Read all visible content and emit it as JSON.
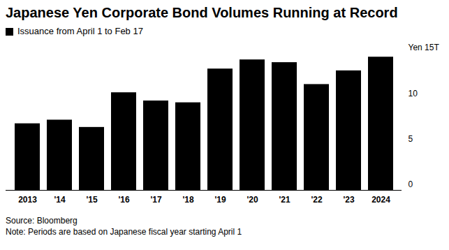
{
  "chart_data": {
    "type": "bar",
    "title": "Japanese Yen Corporate Bond Volumes Running at Record",
    "categories": [
      "2013",
      "'14",
      "'15",
      "'16",
      "'17",
      "'18",
      "'19",
      "'20",
      "'21",
      "'22",
      "'23",
      "2024"
    ],
    "series": [
      {
        "name": "Issuance from April 1 to Feb 17",
        "color": "#000000",
        "values": [
          7.3,
          7.7,
          6.9,
          10.7,
          9.8,
          9.6,
          13.3,
          14.3,
          14.0,
          11.6,
          13.1,
          14.6
        ]
      }
    ],
    "legend": "top-left",
    "ylim": [
      0,
      15
    ],
    "yticks": [
      0,
      5,
      10,
      {
        "value": 15,
        "label": "Yen 15T"
      }
    ],
    "grid": false,
    "caption": [
      "Source: Bloomberg",
      "Note: Periods are based on Japanese fiscal year starting April 1"
    ]
  }
}
